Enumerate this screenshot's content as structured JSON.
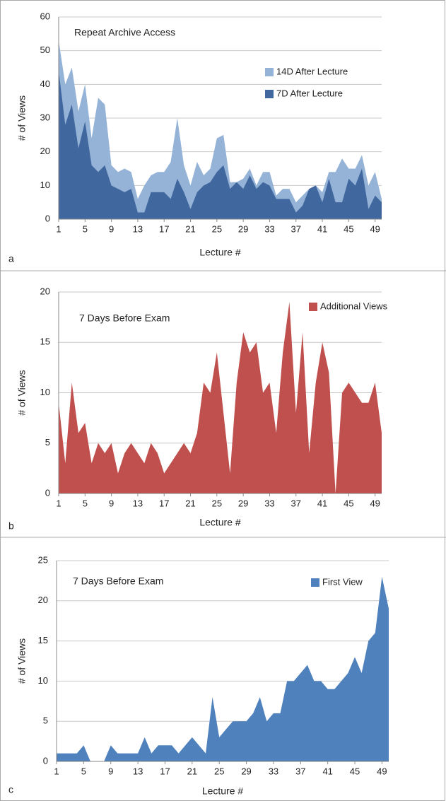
{
  "chart_data": [
    {
      "type": "area",
      "label": "a",
      "title": "Repeat Archive Access",
      "xlabel": "Lecture #",
      "ylabel": "# of Views",
      "x": [
        1,
        2,
        3,
        4,
        5,
        6,
        7,
        8,
        9,
        10,
        11,
        12,
        13,
        14,
        15,
        16,
        17,
        18,
        19,
        20,
        21,
        22,
        23,
        24,
        25,
        26,
        27,
        28,
        29,
        30,
        31,
        32,
        33,
        34,
        35,
        36,
        37,
        38,
        39,
        40,
        41,
        42,
        43,
        44,
        45,
        46,
        47,
        48,
        49,
        50
      ],
      "xlim": [
        1,
        50
      ],
      "xticks": [
        1,
        5,
        9,
        13,
        17,
        21,
        25,
        29,
        33,
        37,
        41,
        45,
        49
      ],
      "ylim": [
        0,
        60
      ],
      "yticks": [
        0,
        10,
        20,
        30,
        40,
        50,
        60
      ],
      "grid": true,
      "legend": "upper right",
      "series": [
        {
          "name": "14D After Lecture",
          "color": "#95b3d7",
          "values": [
            53,
            40,
            45,
            32,
            40,
            24,
            36,
            34,
            16,
            14,
            15,
            14,
            6,
            10,
            13,
            14,
            14,
            17,
            30,
            16,
            10,
            17,
            13,
            15,
            24,
            25,
            11,
            11,
            12,
            15,
            10,
            14,
            14,
            7,
            9,
            9,
            5,
            7,
            9,
            10,
            8,
            14,
            14,
            18,
            15,
            15,
            19,
            10,
            14,
            6
          ]
        },
        {
          "name": "7D After Lecture",
          "color": "#41679f",
          "values": [
            44,
            28,
            34,
            21,
            29,
            16,
            14,
            16,
            10,
            9,
            8,
            9,
            2,
            2,
            8,
            8,
            8,
            6,
            12,
            8,
            3,
            8,
            10,
            11,
            14,
            16,
            9,
            11,
            9,
            13,
            9,
            11,
            10,
            6,
            6,
            6,
            2,
            4,
            9,
            10,
            5,
            12,
            5,
            5,
            12,
            10,
            15,
            3,
            7,
            5
          ]
        }
      ]
    },
    {
      "type": "area",
      "label": "b",
      "title": "7 Days Before Exam",
      "xlabel": "Lecture #",
      "ylabel": "# of Views",
      "x": [
        1,
        2,
        3,
        4,
        5,
        6,
        7,
        8,
        9,
        10,
        11,
        12,
        13,
        14,
        15,
        16,
        17,
        18,
        19,
        20,
        21,
        22,
        23,
        24,
        25,
        26,
        27,
        28,
        29,
        30,
        31,
        32,
        33,
        34,
        35,
        36,
        37,
        38,
        39,
        40,
        41,
        42,
        43,
        44,
        45,
        46,
        47,
        48,
        49,
        50
      ],
      "xlim": [
        1,
        50
      ],
      "xticks": [
        1,
        5,
        9,
        13,
        17,
        21,
        25,
        29,
        33,
        37,
        41,
        45,
        49
      ],
      "ylim": [
        0,
        20
      ],
      "yticks": [
        0,
        5,
        10,
        15,
        20
      ],
      "grid": true,
      "legend": "upper right",
      "series": [
        {
          "name": "Additional Views",
          "color": "#c0504d",
          "values": [
            9,
            3,
            11,
            6,
            7,
            3,
            5,
            4,
            5,
            2,
            4,
            5,
            4,
            3,
            5,
            4,
            2,
            3,
            4,
            5,
            4,
            6,
            11,
            10,
            14,
            8,
            2,
            11,
            16,
            14,
            15,
            10,
            11,
            6,
            14,
            19,
            8,
            16,
            4,
            11,
            15,
            12,
            0,
            10,
            11,
            10,
            9,
            9,
            11,
            6
          ]
        }
      ]
    },
    {
      "type": "area",
      "label": "c",
      "title": "7 Days Before Exam",
      "xlabel": "Lecture #",
      "ylabel": "# of Views",
      "x": [
        1,
        2,
        3,
        4,
        5,
        6,
        7,
        8,
        9,
        10,
        11,
        12,
        13,
        14,
        15,
        16,
        17,
        18,
        19,
        20,
        21,
        22,
        23,
        24,
        25,
        26,
        27,
        28,
        29,
        30,
        31,
        32,
        33,
        34,
        35,
        36,
        37,
        38,
        39,
        40,
        41,
        42,
        43,
        44,
        45,
        46,
        47,
        48,
        49,
        50
      ],
      "xlim": [
        1,
        50
      ],
      "xticks": [
        1,
        5,
        9,
        13,
        17,
        21,
        25,
        29,
        33,
        37,
        41,
        45,
        49
      ],
      "ylim": [
        0,
        25
      ],
      "yticks": [
        0,
        5,
        10,
        15,
        20,
        25
      ],
      "grid": true,
      "legend": "upper right",
      "series": [
        {
          "name": "First View",
          "color": "#4f81bd",
          "values": [
            1,
            1,
            1,
            1,
            2,
            0,
            0,
            0,
            2,
            1,
            1,
            1,
            1,
            3,
            1,
            2,
            2,
            2,
            1,
            2,
            3,
            2,
            1,
            8,
            3,
            4,
            5,
            5,
            5,
            6,
            8,
            5,
            6,
            6,
            10,
            10,
            11,
            12,
            10,
            10,
            9,
            9,
            10,
            11,
            13,
            11,
            15,
            16,
            23,
            19
          ]
        }
      ]
    }
  ]
}
